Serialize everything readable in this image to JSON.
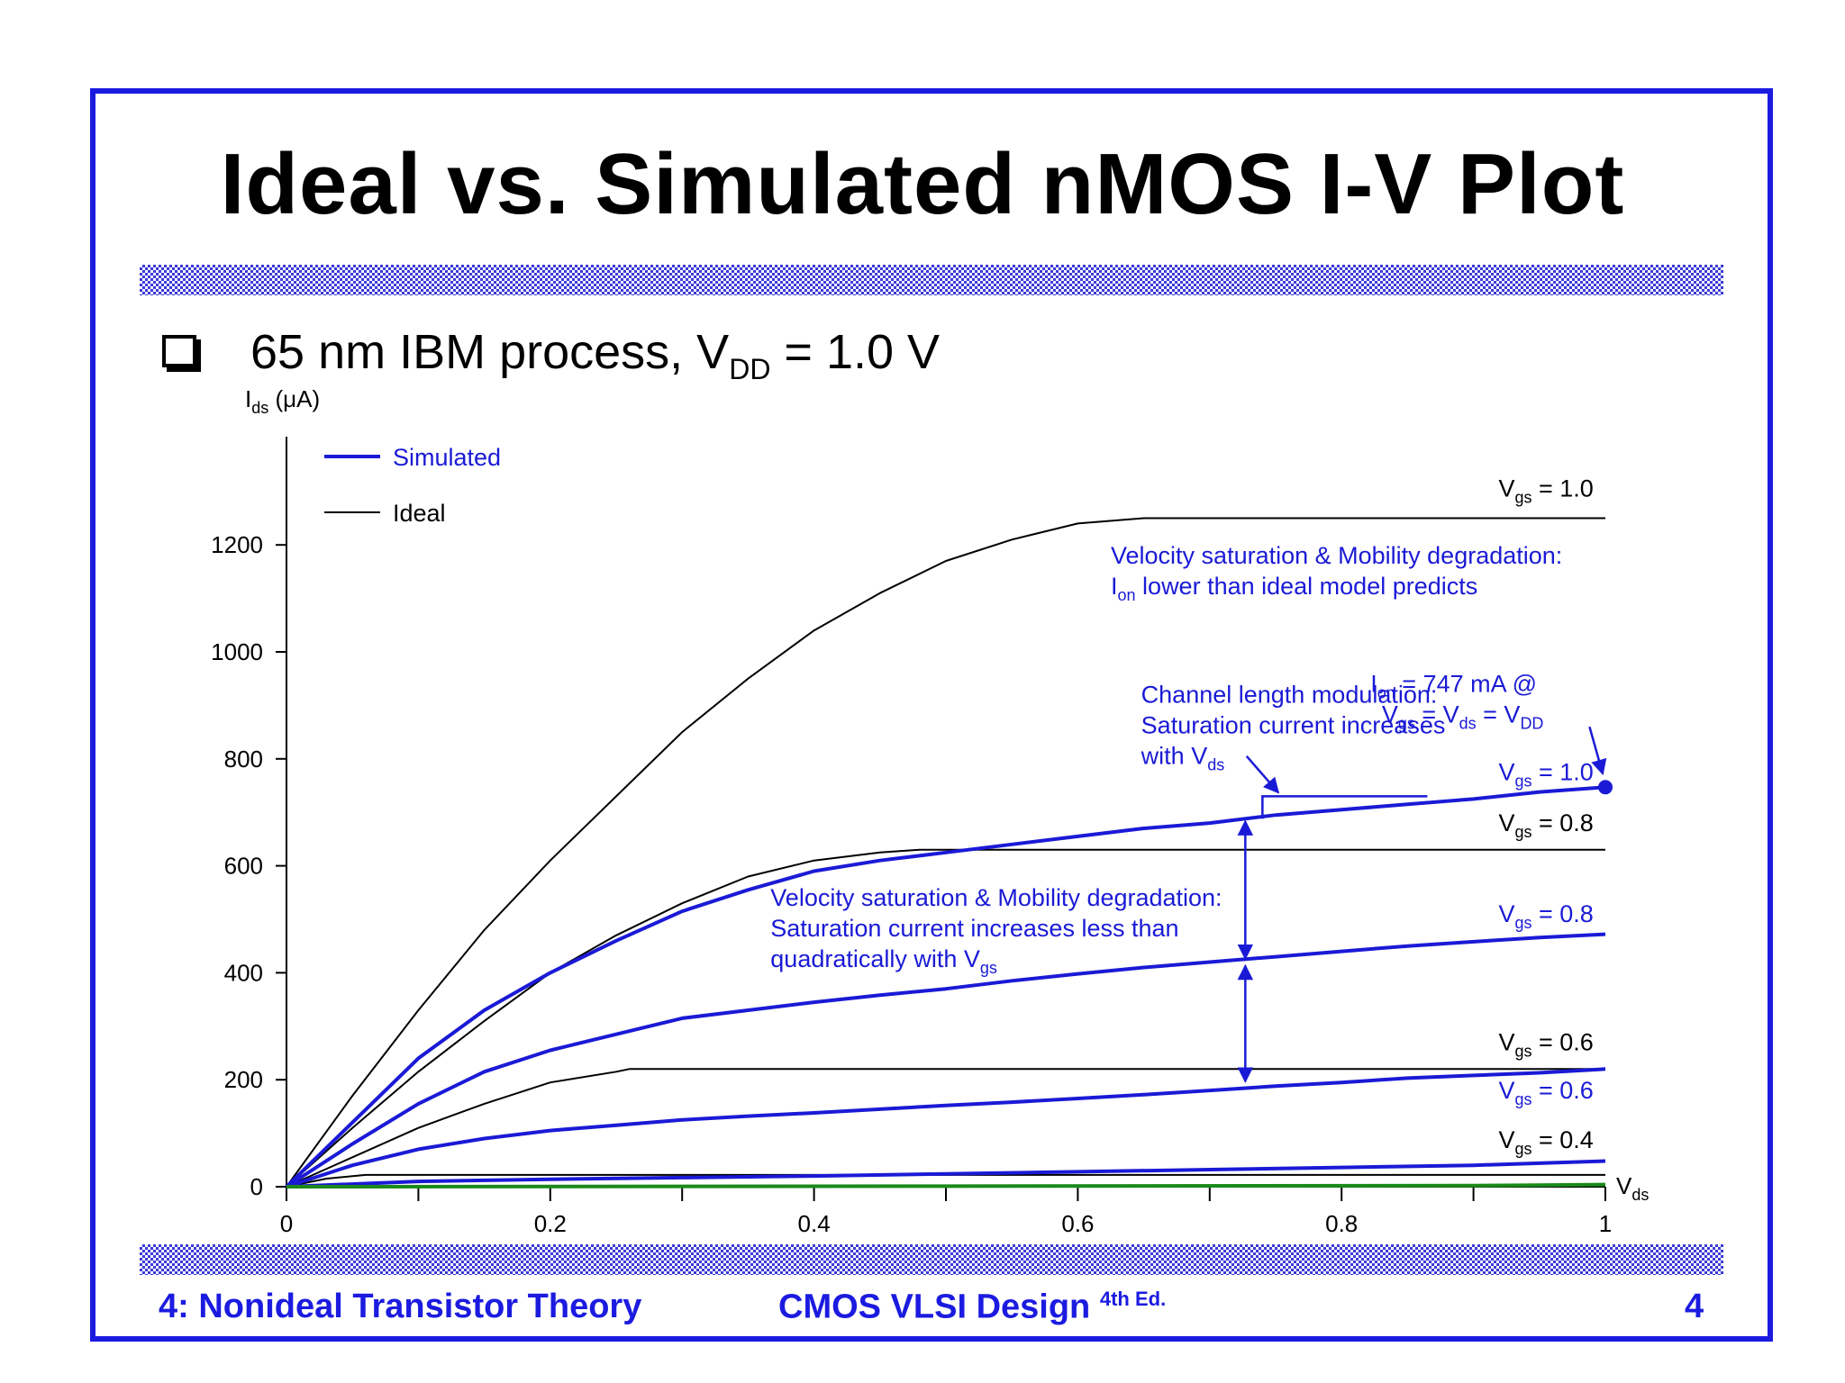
{
  "slide": {
    "title": "Ideal vs. Simulated nMOS I-V Plot",
    "bullet_main": "65 nm IBM process, V",
    "bullet_sub": "DD",
    "bullet_tail": " = 1.0 V",
    "footer_left": "4: Nonideal Transistor Theory",
    "footer_center": "CMOS VLSI Design",
    "footer_center_sup": "4th Ed.",
    "footer_page": "4"
  },
  "colors": {
    "simulated": "#1a1ad6",
    "ideal": "#000000",
    "frame": "#1b1be0",
    "baseline": "#1a8a1a"
  },
  "chart_data": {
    "type": "line",
    "ylabel_main": "I",
    "ylabel_sub": "ds",
    "ylabel_unit": " (μA)",
    "xlabel_main": "V",
    "xlabel_sub": "ds",
    "xlim": [
      0,
      1
    ],
    "ylim": [
      0,
      1200
    ],
    "x_ticks": [
      0,
      0.2,
      0.4,
      0.6,
      0.8,
      1
    ],
    "x_tick_labels": [
      "0",
      "0.2",
      "0.4",
      "0.6",
      "0.8",
      "1"
    ],
    "y_ticks": [
      0,
      200,
      400,
      600,
      800,
      1000,
      1200
    ],
    "y_tick_labels": [
      "0",
      "200",
      "400",
      "600",
      "800",
      "1000",
      "1200"
    ],
    "grid": false,
    "legend": [
      {
        "name": "Simulated",
        "kind": "simulated"
      },
      {
        "name": "Ideal",
        "kind": "ideal"
      }
    ],
    "series": [
      {
        "name": "Ideal",
        "vgs": "1.0",
        "x": [
          0,
          0.05,
          0.1,
          0.15,
          0.2,
          0.25,
          0.3,
          0.35,
          0.4,
          0.45,
          0.5,
          0.55,
          0.6,
          0.65,
          0.68,
          1.0
        ],
        "values": [
          0,
          170,
          330,
          480,
          610,
          730,
          850,
          950,
          1040,
          1110,
          1170,
          1210,
          1240,
          1250,
          1250,
          1250
        ]
      },
      {
        "name": "Ideal",
        "vgs": "0.8",
        "x": [
          0,
          0.05,
          0.1,
          0.15,
          0.2,
          0.25,
          0.3,
          0.35,
          0.4,
          0.45,
          0.48,
          1.0
        ],
        "values": [
          0,
          110,
          215,
          310,
          400,
          470,
          530,
          580,
          610,
          625,
          630,
          630
        ]
      },
      {
        "name": "Ideal",
        "vgs": "0.6",
        "x": [
          0,
          0.05,
          0.1,
          0.15,
          0.2,
          0.25,
          0.26,
          1.0
        ],
        "values": [
          0,
          55,
          110,
          155,
          195,
          215,
          220,
          220
        ]
      },
      {
        "name": "Ideal",
        "vgs": "0.4",
        "x": [
          0,
          0.03,
          0.06,
          1.0
        ],
        "values": [
          0,
          15,
          22,
          22
        ]
      },
      {
        "name": "Simulated",
        "vgs": "1.0",
        "x": [
          0,
          0.05,
          0.1,
          0.15,
          0.2,
          0.25,
          0.3,
          0.35,
          0.4,
          0.45,
          0.5,
          0.55,
          0.6,
          0.65,
          0.7,
          0.75,
          0.8,
          0.85,
          0.9,
          0.95,
          1.0
        ],
        "values": [
          0,
          120,
          240,
          330,
          400,
          460,
          515,
          555,
          590,
          610,
          625,
          640,
          655,
          670,
          680,
          695,
          705,
          715,
          725,
          738,
          747
        ]
      },
      {
        "name": "Simulated",
        "vgs": "0.8",
        "x": [
          0,
          0.05,
          0.1,
          0.15,
          0.2,
          0.25,
          0.3,
          0.35,
          0.4,
          0.45,
          0.5,
          0.55,
          0.6,
          0.65,
          0.7,
          0.75,
          0.8,
          0.85,
          0.9,
          0.95,
          1.0
        ],
        "values": [
          0,
          80,
          155,
          215,
          255,
          285,
          315,
          330,
          345,
          358,
          370,
          385,
          398,
          410,
          420,
          430,
          440,
          450,
          458,
          466,
          472
        ]
      },
      {
        "name": "Simulated",
        "vgs": "0.6",
        "x": [
          0,
          0.05,
          0.1,
          0.15,
          0.2,
          0.25,
          0.3,
          0.35,
          0.4,
          0.45,
          0.5,
          0.55,
          0.6,
          0.65,
          0.7,
          0.75,
          0.8,
          0.85,
          0.9,
          0.95,
          1.0
        ],
        "values": [
          0,
          40,
          70,
          90,
          105,
          115,
          125,
          132,
          138,
          145,
          152,
          158,
          165,
          172,
          180,
          188,
          195,
          203,
          208,
          213,
          220
        ]
      },
      {
        "name": "Simulated",
        "vgs": "0.4",
        "x": [
          0,
          0.1,
          0.2,
          0.3,
          0.4,
          0.5,
          0.6,
          0.7,
          0.8,
          0.9,
          0.95,
          1.0
        ],
        "values": [
          0,
          10,
          14,
          17,
          20,
          24,
          28,
          32,
          36,
          40,
          44,
          48
        ]
      },
      {
        "name": "Simulated",
        "vgs": "0.2",
        "x": [
          0,
          0.5,
          0.9,
          0.95,
          1.0
        ],
        "values": [
          0,
          1,
          2,
          3,
          4
        ]
      }
    ],
    "curve_labels": [
      {
        "kind": "ideal",
        "main": "V",
        "sub": "gs",
        "tail": " = 1.0",
        "x": 0.955,
        "y": 1290
      },
      {
        "kind": "ideal",
        "main": "V",
        "sub": "gs",
        "tail": " = 0.8",
        "x": 0.955,
        "y": 665
      },
      {
        "kind": "ideal",
        "main": "V",
        "sub": "gs",
        "tail": " = 0.6",
        "x": 0.955,
        "y": 255
      },
      {
        "kind": "ideal",
        "main": "V",
        "sub": "gs",
        "tail": " = 0.4",
        "x": 0.955,
        "y": 72
      },
      {
        "kind": "simulated",
        "main": "V",
        "sub": "gs",
        "tail": " = 1.0",
        "x": 0.955,
        "y": 760
      },
      {
        "kind": "simulated",
        "main": "V",
        "sub": "gs",
        "tail": " = 0.8",
        "x": 0.955,
        "y": 495
      },
      {
        "kind": "simulated",
        "main": "V",
        "sub": "gs",
        "tail": " = 0.6",
        "x": 0.955,
        "y": 165
      }
    ],
    "annotations": {
      "vsat_ion": {
        "line1": "Velocity saturation & Mobility degradation:",
        "line2_main": "I",
        "line2_sub": "on",
        "line2_tail": " lower than ideal model predicts",
        "x": 0.625,
        "y": 1165
      },
      "clm": {
        "line1": "Channel length modulation:",
        "line2": "Saturation current increases",
        "line3_main": "with V",
        "line3_sub": "ds",
        "x": 0.648,
        "y": 905
      },
      "ion": {
        "line1_main": "I",
        "line1_sub": "on",
        "line1_tail": " = 747 mA @",
        "line2_a": "V",
        "line2_a_sub": "gs",
        "line2_b": " = V",
        "line2_b_sub": "ds",
        "line2_c": " = V",
        "line2_c_sub": "DD",
        "x": 0.885,
        "y": 925,
        "point": {
          "x": 1.0,
          "y": 747
        }
      },
      "vsat_sat": {
        "line1": "Velocity saturation & Mobility degradation:",
        "line2": "Saturation current increases less than",
        "line3_main": "quadratically with V",
        "line3_sub": "gs",
        "x": 0.367,
        "y": 525
      },
      "double_arrow": {
        "x": 0.727,
        "y_top": 690,
        "y_mid": 420,
        "y_bottom": 190
      },
      "clm_bracket": {
        "x1": 0.74,
        "x2": 0.865,
        "y": 730
      }
    }
  }
}
